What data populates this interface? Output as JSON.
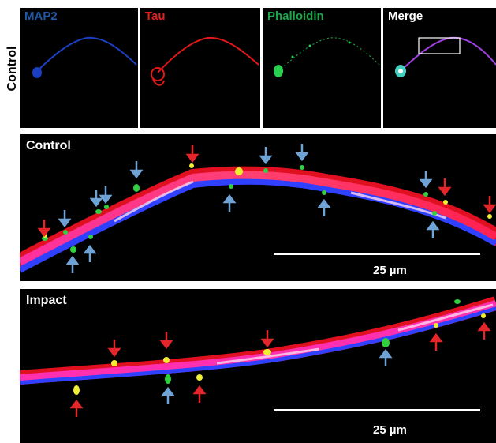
{
  "figure": {
    "side_label": "Control",
    "top_panels": [
      {
        "title": "MAP2",
        "color": "#1e5aa8"
      },
      {
        "title": "Tau",
        "color": "#e02020"
      },
      {
        "title": "Phalloidin",
        "color": "#1aa84a"
      },
      {
        "title": "Merge",
        "color": "#ffffff"
      }
    ],
    "control_panel": {
      "title": "Control",
      "scale_label": "25 µm"
    },
    "impact_panel": {
      "title": "Impact",
      "scale_label": "25 µm"
    },
    "arrow_colors": {
      "red": "#e4262b",
      "blue": "#6fa3d6"
    }
  }
}
